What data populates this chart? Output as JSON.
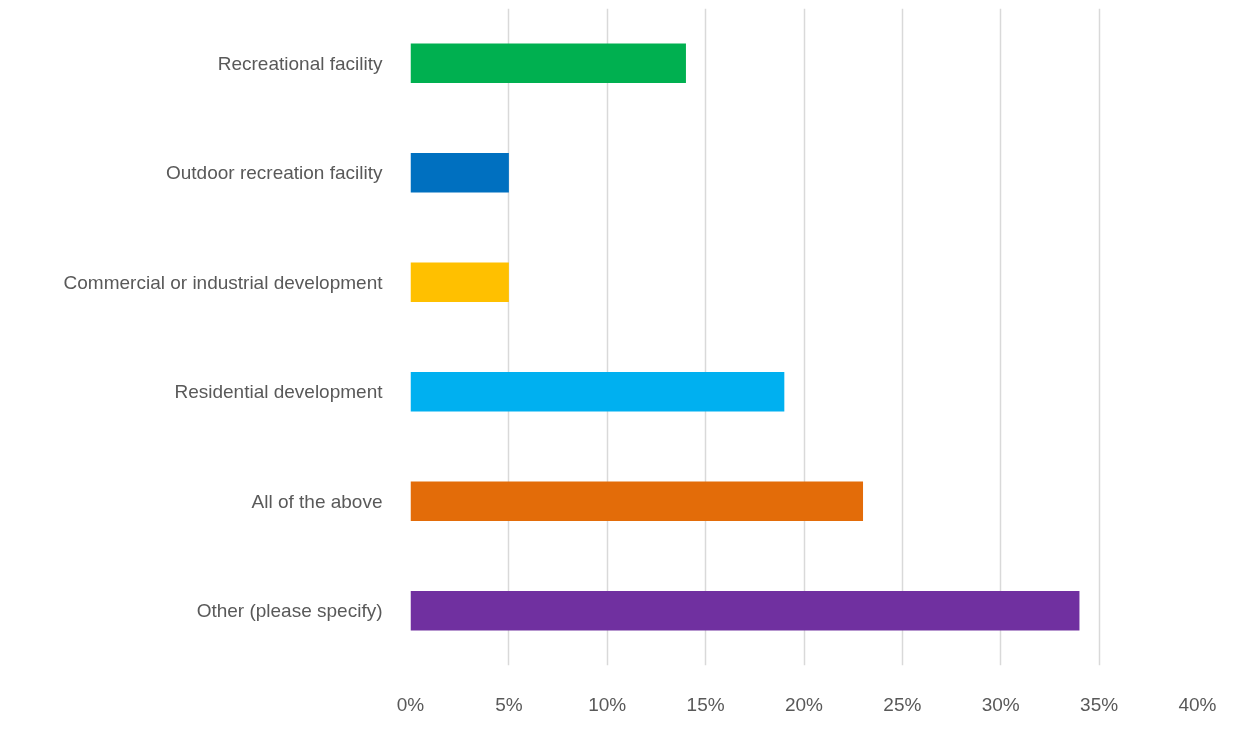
{
  "chart_data": {
    "type": "bar",
    "orientation": "horizontal",
    "categories": [
      "Recreational facility",
      "Outdoor recreation facility",
      "Commercial or industrial development",
      "Residential development",
      "All of the above",
      "Other (please specify)"
    ],
    "values": [
      14,
      5,
      5,
      19,
      23,
      34
    ],
    "colors": [
      "#00b050",
      "#0070c0",
      "#ffc000",
      "#00b0f0",
      "#e36c09",
      "#7030a0"
    ],
    "xlim": [
      0,
      40
    ],
    "xticks": [
      {
        "value": 0,
        "label": "0%"
      },
      {
        "value": 5,
        "label": "5%"
      },
      {
        "value": 10,
        "label": "10%"
      },
      {
        "value": 15,
        "label": "15%"
      },
      {
        "value": 20,
        "label": "20%"
      },
      {
        "value": 25,
        "label": "25%"
      },
      {
        "value": 30,
        "label": "30%"
      },
      {
        "value": 35,
        "label": "35%"
      },
      {
        "value": 40,
        "label": "40%"
      }
    ],
    "grid": "x"
  }
}
